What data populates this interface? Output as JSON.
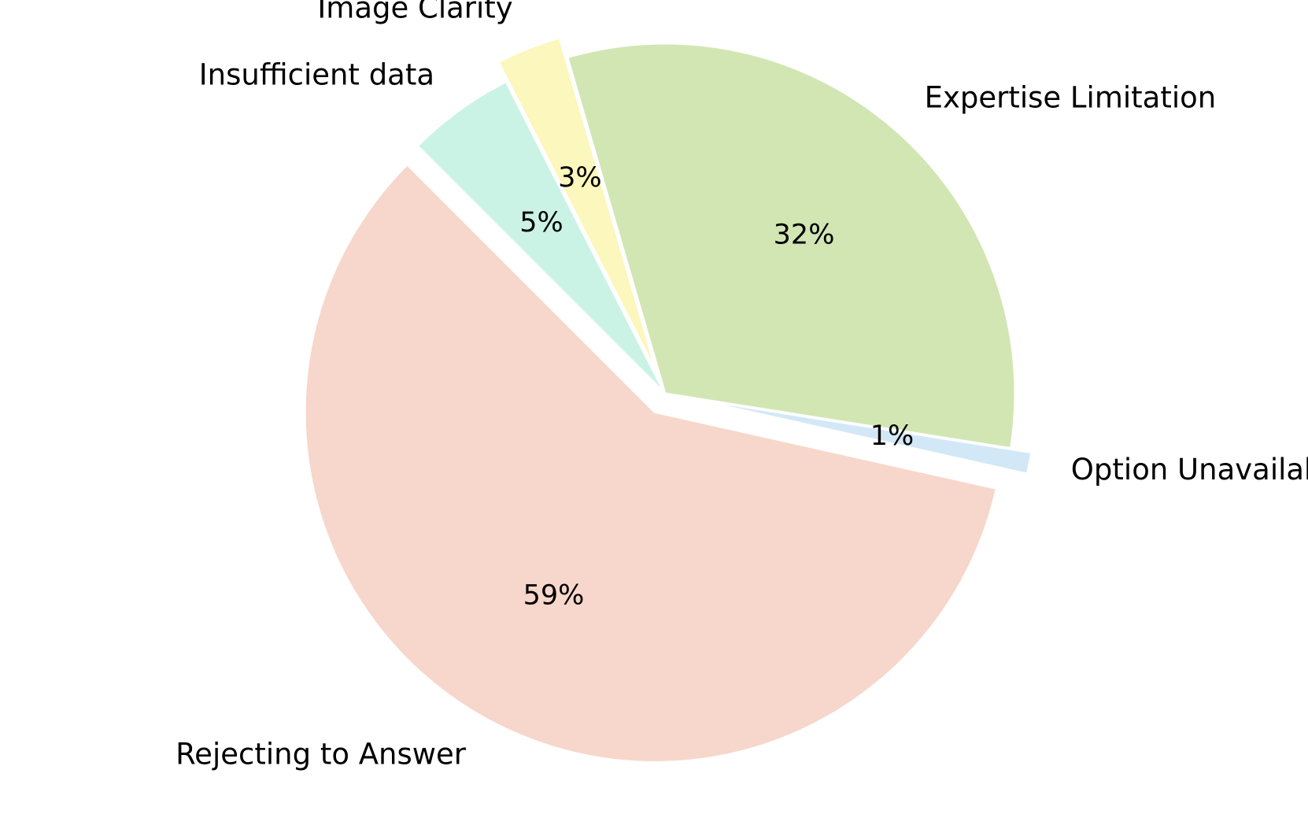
{
  "chart_data": {
    "type": "pie",
    "title": "",
    "slices": [
      {
        "label": "Rejecting to Answer",
        "value": 59,
        "pct_label": "59%",
        "color": "#f7d7cb"
      },
      {
        "label": "Option Unavailable",
        "value": 1,
        "pct_label": "1%",
        "color": "#d3e8f6"
      },
      {
        "label": "Expertise Limitation",
        "value": 32,
        "pct_label": "32%",
        "color": "#d2e6b4"
      },
      {
        "label": "Image Clarity",
        "value": 3,
        "pct_label": "3%",
        "color": "#fbf7bd"
      },
      {
        "label": "Insufficient data",
        "value": 5,
        "pct_label": "5%",
        "color": "#cbf3e5"
      }
    ],
    "exploded": [
      "Rejecting to Answer",
      "Option Unavailable",
      "Image Clarity"
    ],
    "start_angle_deg": 135,
    "direction": "counterclockwise",
    "legend": "none"
  }
}
